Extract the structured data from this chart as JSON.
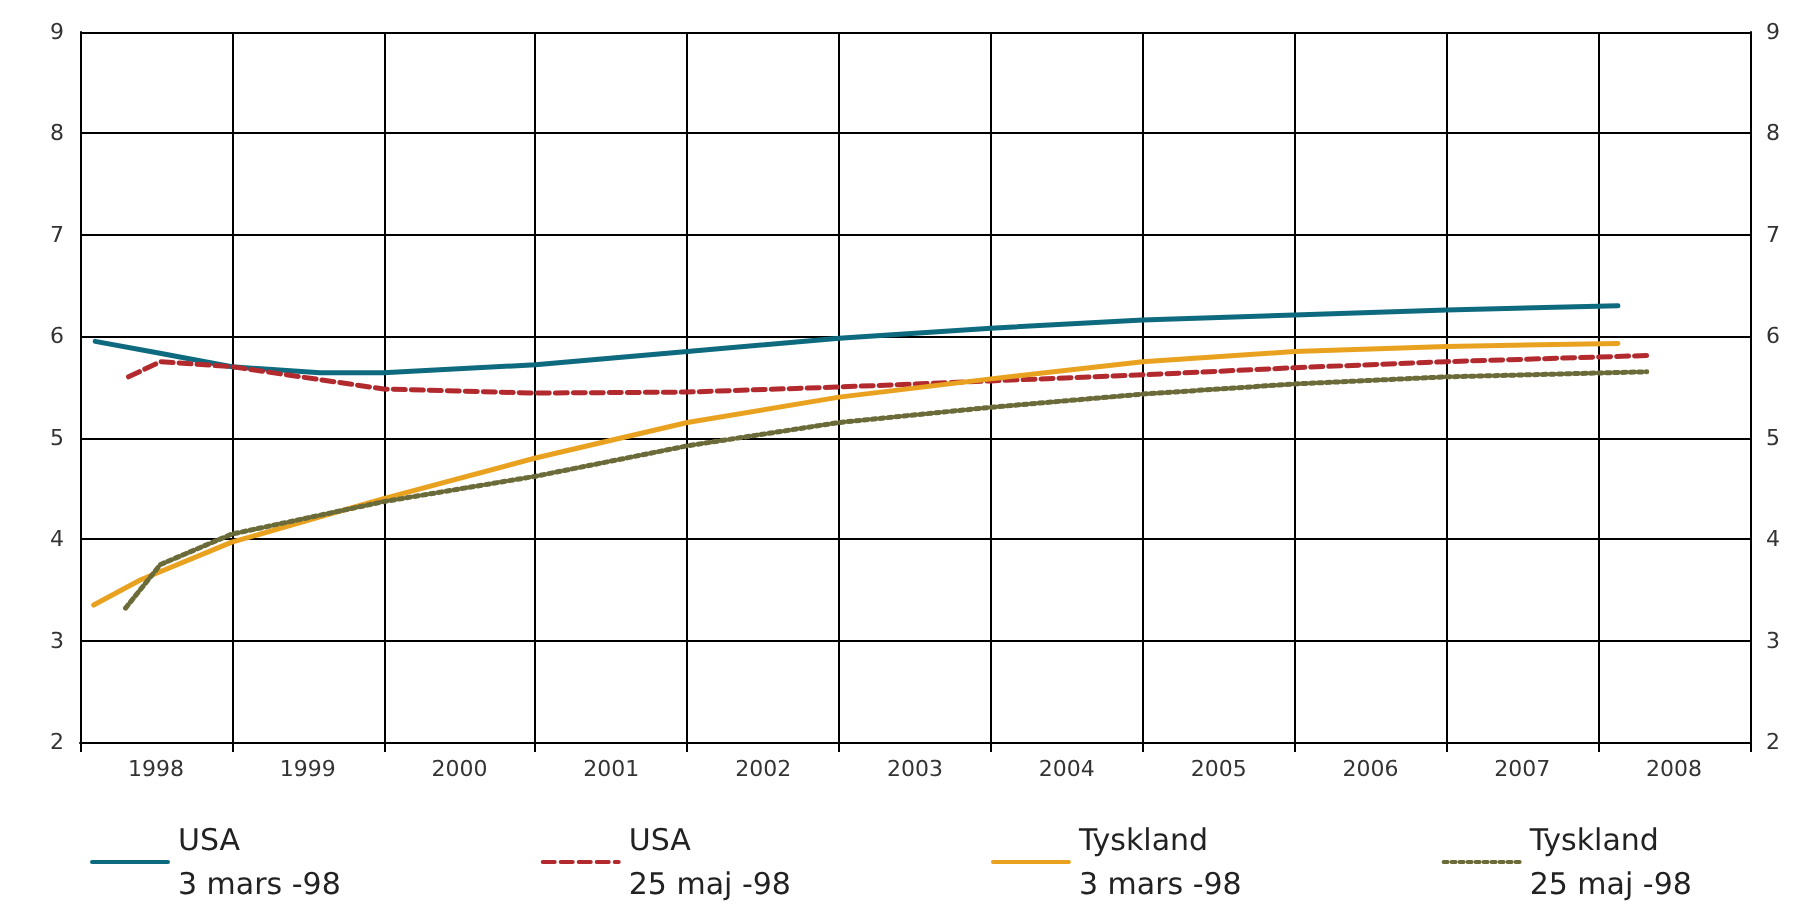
{
  "chart_data": {
    "type": "line",
    "xlim": [
      1998,
      2009
    ],
    "xticks": [
      {
        "value": 1998,
        "label": null
      },
      {
        "value": 1998.5,
        "label": "1998"
      },
      {
        "value": 1999,
        "label": null
      },
      {
        "value": 1999.5,
        "label": "1999"
      },
      {
        "value": 2000,
        "label": null
      },
      {
        "value": 2000.5,
        "label": "2000"
      },
      {
        "value": 2001,
        "label": null
      },
      {
        "value": 2001.5,
        "label": "2001"
      },
      {
        "value": 2002,
        "label": null
      },
      {
        "value": 2002.5,
        "label": "2002"
      },
      {
        "value": 2003,
        "label": null
      },
      {
        "value": 2003.5,
        "label": "2003"
      },
      {
        "value": 2004,
        "label": null
      },
      {
        "value": 2004.5,
        "label": "2004"
      },
      {
        "value": 2005,
        "label": null
      },
      {
        "value": 2005.5,
        "label": "2005"
      },
      {
        "value": 2006,
        "label": null
      },
      {
        "value": 2006.5,
        "label": "2006"
      },
      {
        "value": 2007,
        "label": null
      },
      {
        "value": 2007.5,
        "label": "2007"
      },
      {
        "value": 2008,
        "label": null
      },
      {
        "value": 2008.5,
        "label": "2008"
      },
      {
        "value": 2009,
        "label": null
      }
    ],
    "ylim": [
      2,
      9
    ],
    "yticks": [
      2,
      3,
      4,
      5,
      6,
      7,
      8,
      9
    ],
    "y2lim": [
      2,
      9
    ],
    "y2ticks": [
      2,
      3,
      4,
      5,
      6,
      7,
      8,
      9
    ],
    "grid": true,
    "legend": "bottom",
    "marker": "none",
    "series": [
      {
        "name": "USA\n3 mars -98",
        "color": "#0e6a7e",
        "line_style": "solid",
        "x": [
          1998.1,
          1998.5,
          1999,
          1999.58,
          2000,
          2001,
          2002,
          2003,
          2004,
          2005,
          2006,
          2007,
          2008.13
        ],
        "values": [
          5.95,
          5.84,
          5.7,
          5.64,
          5.64,
          5.72,
          5.85,
          5.98,
          6.08,
          6.16,
          6.21,
          6.26,
          6.3
        ]
      },
      {
        "name": "USA\n25 maj -98",
        "color": "#b22a2e",
        "line_style": "dashed",
        "x": [
          1998.32,
          1998.53,
          1999,
          2000,
          2001,
          2002,
          2003,
          2004,
          2005,
          2006,
          2007,
          2008.32
        ],
        "values": [
          5.6,
          5.75,
          5.7,
          5.48,
          5.44,
          5.45,
          5.5,
          5.56,
          5.62,
          5.69,
          5.75,
          5.81
        ]
      },
      {
        "name": "Tyskland\n3 mars -98",
        "color": "#e9a21f",
        "line_style": "solid",
        "x": [
          1998.09,
          1998.4,
          1999,
          2000,
          2001,
          2002,
          2003,
          2004,
          2005,
          2006,
          2007,
          2008.13
        ],
        "values": [
          3.35,
          3.6,
          3.97,
          4.4,
          4.8,
          5.15,
          5.4,
          5.58,
          5.75,
          5.85,
          5.9,
          5.93
        ]
      },
      {
        "name": "Tyskland\n25 maj -98",
        "color": "#6b6b3a",
        "line_style": "dotted",
        "x": [
          1998.3,
          1998.53,
          1999,
          2000,
          2001,
          2002,
          2003,
          2004,
          2005,
          2006,
          2007,
          2008.32
        ],
        "values": [
          3.32,
          3.75,
          4.05,
          4.37,
          4.62,
          4.92,
          5.15,
          5.3,
          5.43,
          5.53,
          5.6,
          5.65
        ]
      }
    ]
  }
}
